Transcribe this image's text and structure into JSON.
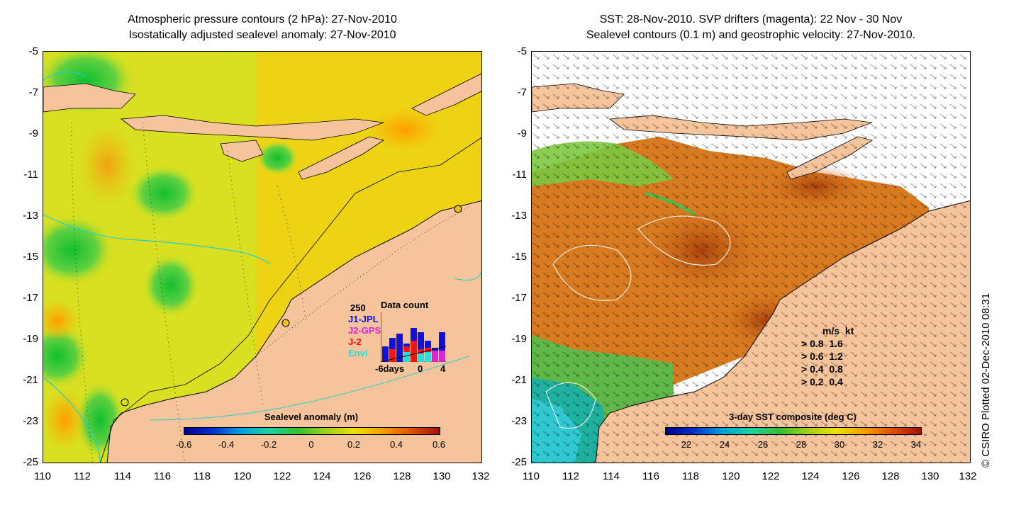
{
  "left": {
    "title_line1": "Atmospheric pressure contours (2 hPa): 27-Nov-2010",
    "title_line2": "Isostatically adjusted sealevel anomaly: 27-Nov-2010",
    "colorbar": {
      "title": "Sealevel anomaly (m)",
      "ticks": [
        "-0.6",
        "-0.4",
        "-0.2",
        "0",
        "0.2",
        "0.4",
        "0.6"
      ]
    },
    "histogram": {
      "title": "Data count",
      "max_label": "250",
      "series": [
        {
          "name": "J1-JPL",
          "color": "#1010e0"
        },
        {
          "name": "J2-GPS",
          "color": "#e020e0"
        },
        {
          "name": "J-2",
          "color": "#ff1010"
        },
        {
          "name": "Envi",
          "color": "#20e0e0"
        }
      ],
      "xlabel_left": "-6days",
      "xlabel_mid": "0",
      "xlabel_right": "4"
    }
  },
  "right": {
    "title_line1": "SST: 28-Nov-2010. SVP drifters (magenta): 22 Nov - 30 Nov",
    "title_line2": "Sealevel contours (0.1 m) and geostrophic velocity: 27-Nov-2010.",
    "colorbar": {
      "title": "3-day SST composite (deg C)",
      "ticks": [
        "22",
        "24",
        "26",
        "28",
        "30",
        "32",
        "34"
      ]
    },
    "velocity_legend": {
      "header_ms": "m/s",
      "header_kt": "kt",
      "rows": [
        {
          "ms": "0.8",
          "kt": "1.6"
        },
        {
          "ms": "0.6",
          "kt": "1.2"
        },
        {
          "ms": "0.4",
          "kt": "0.8"
        },
        {
          "ms": "0.2",
          "kt": "0.4"
        }
      ]
    }
  },
  "axes": {
    "y_ticks": [
      "-5",
      "-7",
      "-9",
      "-11",
      "-13",
      "-15",
      "-17",
      "-19",
      "-21",
      "-23",
      "-25"
    ],
    "x_ticks": [
      "110",
      "112",
      "114",
      "116",
      "118",
      "120",
      "122",
      "124",
      "126",
      "128",
      "130",
      "132"
    ]
  },
  "credit": "© CSIRO Plotted 02-Dec-2010 08:31",
  "colors": {
    "land": "#f6c49a",
    "sla_mid": "#e8e020",
    "sst_warm": "#d26a1a",
    "coast_contour": "#20d0d0"
  }
}
